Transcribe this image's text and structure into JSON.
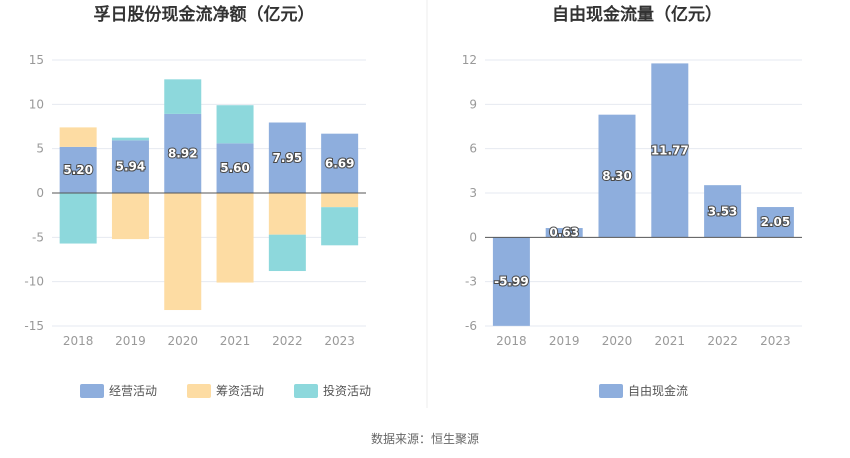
{
  "chart_data": [
    {
      "type": "bar",
      "stacked": true,
      "title": "孚日股份现金流净额（亿元）",
      "categories": [
        "2018",
        "2019",
        "2020",
        "2021",
        "2022",
        "2023"
      ],
      "ylim": [
        -15,
        15
      ],
      "yticks": [
        15,
        10,
        5,
        0,
        -5,
        -10,
        -15
      ],
      "grid": true,
      "legend": "bottom",
      "series": [
        {
          "name": "经营活动",
          "color": "#8eaedd",
          "values": [
            5.2,
            5.94,
            8.92,
            5.6,
            7.95,
            6.69
          ],
          "labels": [
            "5.20",
            "5.94",
            "8.92",
            "5.60",
            "7.95",
            "6.69"
          ]
        },
        {
          "name": "筹资活动",
          "color": "#fddca3",
          "values": [
            2.2,
            -5.2,
            -13.2,
            -10.1,
            -4.7,
            -1.6
          ]
        },
        {
          "name": "投资活动",
          "color": "#8dd8dc",
          "values": [
            -5.7,
            0.3,
            3.9,
            4.3,
            -4.1,
            -4.3
          ]
        }
      ]
    },
    {
      "type": "bar",
      "title": "自由现金流量（亿元）",
      "categories": [
        "2018",
        "2019",
        "2020",
        "2021",
        "2022",
        "2023"
      ],
      "ylim": [
        -6,
        12
      ],
      "yticks": [
        12,
        9,
        6,
        3,
        0,
        -3,
        -6
      ],
      "grid": true,
      "legend": "bottom",
      "series": [
        {
          "name": "自由现金流",
          "color": "#8eaedd",
          "values": [
            -5.99,
            0.63,
            8.3,
            11.77,
            3.53,
            2.05
          ],
          "labels": [
            "-5.99",
            "0.63",
            "8.30",
            "11.77",
            "3.53",
            "2.05"
          ]
        }
      ]
    }
  ],
  "source_text": "数据来源：恒生聚源"
}
